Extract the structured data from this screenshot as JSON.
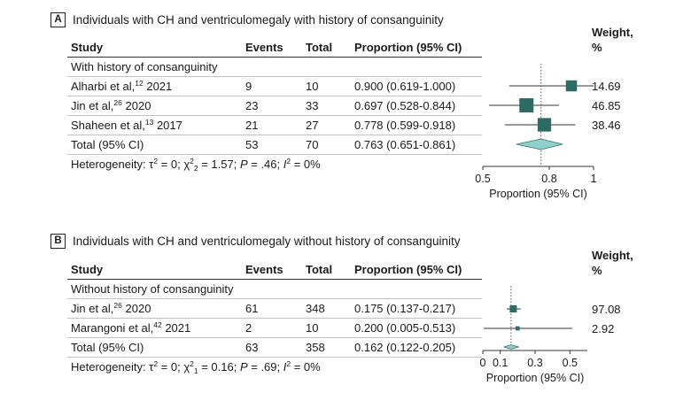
{
  "panels": {
    "a": {
      "letter": "A",
      "title": "Individuals with CH and ventriculomegaly with history of consanguinity",
      "header": {
        "study": "Study",
        "events": "Events",
        "total": "Total",
        "proportion": "Proportion (95% CI)"
      },
      "weight_header": [
        "Weight,",
        "%"
      ],
      "subgroup": "With history of consanguinity",
      "rows": [
        {
          "author": "Alharbi et al,",
          "ref": "12",
          "year": " 2021",
          "events": "9",
          "total": "10",
          "proportion": "0.900 (0.619-1.000)",
          "weight": "14.69"
        },
        {
          "author": "Jin et al,",
          "ref": "26",
          "year": " 2020",
          "events": "23",
          "total": "33",
          "proportion": "0.697 (0.528-0.844)",
          "weight": "46.85"
        },
        {
          "author": "Shaheen et al,",
          "ref": "13",
          "year": " 2017",
          "events": "21",
          "total": "27",
          "proportion": "0.778 (0.599-0.918)",
          "weight": "38.46"
        }
      ],
      "total": {
        "label": "Total (95% CI)",
        "events": "53",
        "total": "70",
        "proportion": "0.763 (0.651-0.861)"
      },
      "heterogeneity": {
        "prefix": "Heterogeneity: τ",
        "tau_sup": "2",
        "eq1": " = 0; χ",
        "chi_sup": "2",
        "chi_sub": "2",
        "eq2": " = 1.57; ",
        "p": "P",
        "eq3": " = .46; ",
        "i": "I",
        "i_sup": "2",
        "eq4": " = 0%"
      }
    },
    "b": {
      "letter": "B",
      "title": "Individuals with CH and ventriculomegaly without history of consanguinity",
      "header": {
        "study": "Study",
        "events": "Events",
        "total": "Total",
        "proportion": "Proportion (95% CI)"
      },
      "weight_header": [
        "Weight,",
        "%"
      ],
      "subgroup": "Without history of consanguinity",
      "rows": [
        {
          "author": "Jin et al,",
          "ref": "26",
          "year": " 2020",
          "events": "61",
          "total": "348",
          "proportion": "0.175 (0.137-0.217)",
          "weight": "97.08"
        },
        {
          "author": "Marangoni et al,",
          "ref": "42",
          "year": " 2021",
          "events": "2",
          "total": "10",
          "proportion": "0.200 (0.005-0.513)",
          "weight": "2.92"
        }
      ],
      "total": {
        "label": "Total (95% CI)",
        "events": "63",
        "total": "358",
        "proportion": "0.162 (0.122-0.205)"
      },
      "heterogeneity": {
        "prefix": "Heterogeneity: τ",
        "tau_sup": "2",
        "eq1": " = 0; χ",
        "chi_sup": "2",
        "chi_sub": "1",
        "eq2": " = 0.16; ",
        "p": "P",
        "eq3": " = .69; ",
        "i": "I",
        "i_sup": "2",
        "eq4": " = 0%"
      }
    }
  },
  "chart_data": [
    {
      "type": "forest",
      "xlabel": "Proportion (95% CI)",
      "xlim": [
        0.5,
        1
      ],
      "xticks": [
        0.5,
        0.8,
        1
      ],
      "xtick_labels": [
        "0.5",
        "0.8",
        "1"
      ],
      "studies": [
        {
          "est": 0.9,
          "lo": 0.619,
          "hi": 1.0,
          "weight": 14.69
        },
        {
          "est": 0.697,
          "lo": 0.528,
          "hi": 0.844,
          "weight": 46.85
        },
        {
          "est": 0.778,
          "lo": 0.599,
          "hi": 0.918,
          "weight": 38.46
        }
      ],
      "pooled": {
        "est": 0.763,
        "lo": 0.651,
        "hi": 0.861
      },
      "colors": {
        "marker": "#2e6b62",
        "diamond": "#8fcfcc",
        "line": "#333333"
      }
    },
    {
      "type": "forest",
      "xlabel": "Proportion (95% CI)",
      "xlim": [
        0,
        0.6
      ],
      "xticks": [
        0,
        0.1,
        0.3,
        0.5
      ],
      "xtick_labels": [
        "0",
        "0.1",
        "0.3",
        "0.5"
      ],
      "studies": [
        {
          "est": 0.175,
          "lo": 0.137,
          "hi": 0.217,
          "weight": 97.08
        },
        {
          "est": 0.2,
          "lo": 0.005,
          "hi": 0.513,
          "weight": 2.92
        }
      ],
      "pooled": {
        "est": 0.162,
        "lo": 0.122,
        "hi": 0.205
      },
      "colors": {
        "marker": "#2e6b62",
        "diamond": "#8fcfcc",
        "line": "#333333"
      }
    }
  ]
}
